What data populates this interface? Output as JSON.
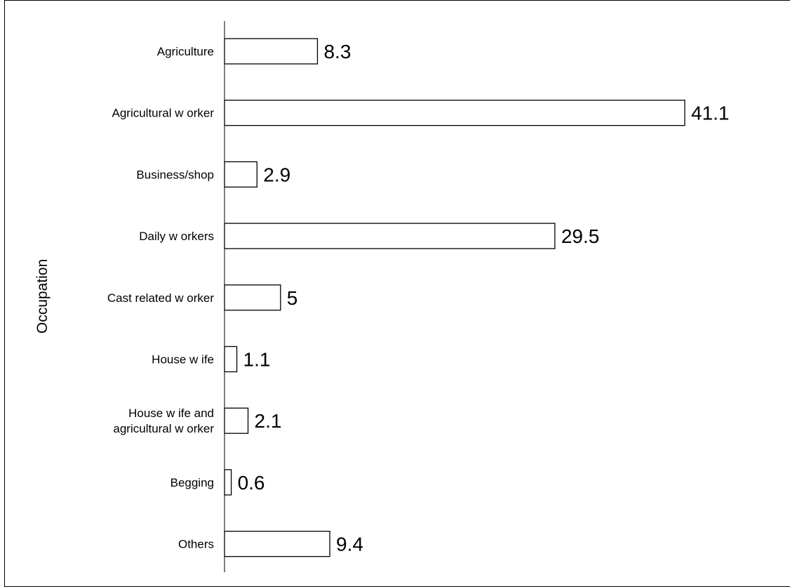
{
  "chart_data": {
    "type": "bar",
    "orientation": "horizontal",
    "title": "",
    "xlabel": "",
    "ylabel": "Occupation",
    "categories": [
      [
        "Agriculture"
      ],
      [
        "Agricultural w orker"
      ],
      [
        "Business/shop"
      ],
      [
        "Daily w orkers"
      ],
      [
        "Cast related  w orker"
      ],
      [
        "House w ife"
      ],
      [
        "House w ife and",
        "agricultural w orker"
      ],
      [
        "Begging"
      ],
      [
        "Others"
      ]
    ],
    "values": [
      8.3,
      41.1,
      2.9,
      29.5,
      5,
      1.1,
      2.1,
      0.6,
      9.4
    ],
    "value_labels": [
      "8.3",
      "41.1",
      "2.9",
      "29.5",
      "5",
      "1.1",
      "2.1",
      "0.6",
      "9.4"
    ],
    "xlim": [
      0,
      41.1
    ],
    "grid": false,
    "legend": "none",
    "colors": {
      "bar_fill": "#ffffff",
      "bar_stroke": "#000000"
    }
  }
}
